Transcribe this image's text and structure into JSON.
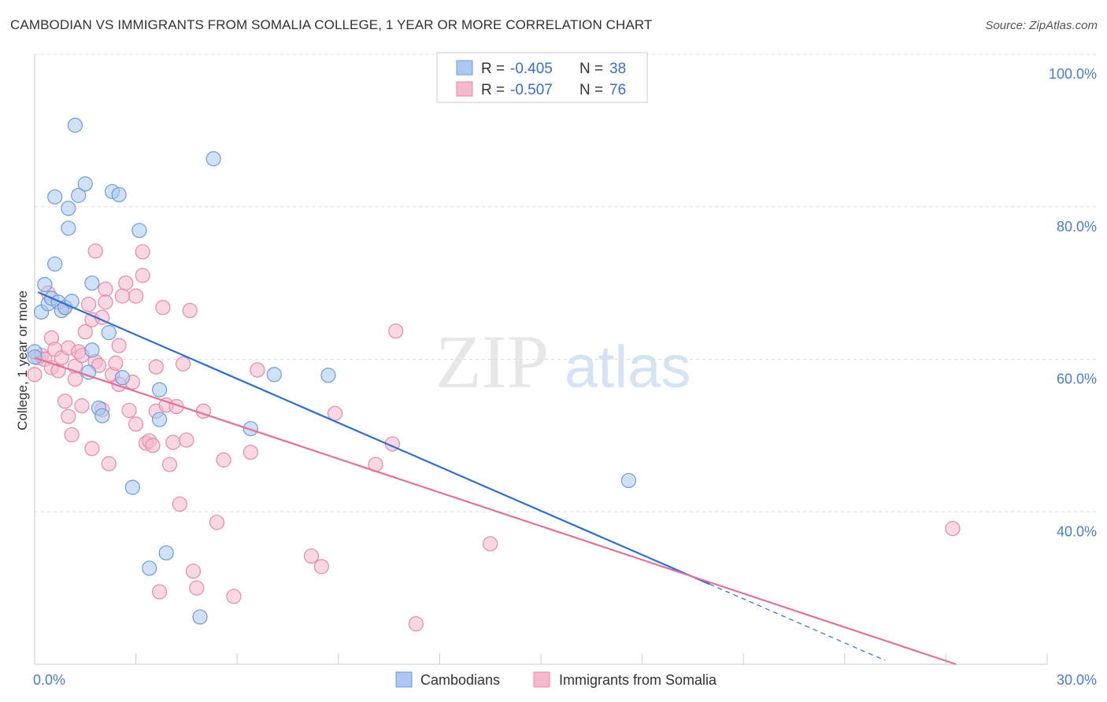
{
  "title": "CAMBODIAN VS IMMIGRANTS FROM SOMALIA COLLEGE, 1 YEAR OR MORE CORRELATION CHART",
  "source": "Source: ZipAtlas.com",
  "watermark": {
    "zip": "ZIP",
    "atlas": "atlas"
  },
  "colors": {
    "blue_fill": "#aac8f0",
    "blue_stroke": "#6f9bd6",
    "blue_line": "#2f6fcf",
    "pink_fill": "#f5b8cc",
    "pink_stroke": "#e58aa8",
    "pink_line": "#e0719b",
    "grid": "#dddddd",
    "tick_text": "#4a7cc9"
  },
  "legend": {
    "r_label": "R =",
    "n_label": "N =",
    "series": [
      {
        "name": "Cambodians",
        "r": "-0.405",
        "n": "38"
      },
      {
        "name": "Immigrants from Somalia",
        "r": "-0.507",
        "n": "76"
      }
    ]
  },
  "chart_data": {
    "type": "scatter",
    "title": "CAMBODIAN VS IMMIGRANTS FROM SOMALIA COLLEGE, 1 YEAR OR MORE CORRELATION CHART",
    "xlabel": "",
    "ylabel": "College, 1 year or more",
    "xlim": [
      0,
      30
    ],
    "ylim": [
      20,
      103
    ],
    "x_tick_labels": {
      "min": "0.0%",
      "max": "30.0%"
    },
    "y_ticks": [
      {
        "value": 100,
        "label": "100.0%"
      },
      {
        "value": 80,
        "label": "80.0%"
      },
      {
        "value": 60,
        "label": "60.0%"
      },
      {
        "value": 40,
        "label": "40.0%"
      }
    ],
    "series": [
      {
        "name": "Cambodians",
        "color": "blue",
        "trend": {
          "x0": 0.1,
          "y0": 68.8,
          "x1": 20.0,
          "y1": 30.5,
          "dash_to_x": 25.2
        },
        "points": [
          [
            0.0,
            61.0
          ],
          [
            0.0,
            60.3
          ],
          [
            0.2,
            66.2
          ],
          [
            0.3,
            69.8
          ],
          [
            0.4,
            67.3
          ],
          [
            0.5,
            68.0
          ],
          [
            0.6,
            72.5
          ],
          [
            0.6,
            81.3
          ],
          [
            0.7,
            67.5
          ],
          [
            0.8,
            66.4
          ],
          [
            0.9,
            66.8
          ],
          [
            1.0,
            77.2
          ],
          [
            1.0,
            79.8
          ],
          [
            1.1,
            67.6
          ],
          [
            1.2,
            90.7
          ],
          [
            1.3,
            81.5
          ],
          [
            1.5,
            83.0
          ],
          [
            1.6,
            58.3
          ],
          [
            1.7,
            70.0
          ],
          [
            1.7,
            61.2
          ],
          [
            1.9,
            53.6
          ],
          [
            2.0,
            52.6
          ],
          [
            2.2,
            63.5
          ],
          [
            2.3,
            82.0
          ],
          [
            2.5,
            81.6
          ],
          [
            2.6,
            57.6
          ],
          [
            2.9,
            43.2
          ],
          [
            3.1,
            76.9
          ],
          [
            3.4,
            32.6
          ],
          [
            3.7,
            56.0
          ],
          [
            3.7,
            52.1
          ],
          [
            3.9,
            34.6
          ],
          [
            4.9,
            26.2
          ],
          [
            5.3,
            86.3
          ],
          [
            6.4,
            50.9
          ],
          [
            7.1,
            58.0
          ],
          [
            8.7,
            57.9
          ],
          [
            17.6,
            44.1
          ]
        ]
      },
      {
        "name": "Immigrants from Somalia",
        "color": "pink",
        "trend": {
          "x0": 0.0,
          "y0": 60.2,
          "x1": 27.3,
          "y1": 20.0
        },
        "points": [
          [
            0.0,
            58.0
          ],
          [
            0.1,
            60.2
          ],
          [
            0.2,
            60.5
          ],
          [
            0.3,
            60.0
          ],
          [
            0.4,
            68.7
          ],
          [
            0.5,
            58.9
          ],
          [
            0.5,
            62.8
          ],
          [
            0.6,
            61.3
          ],
          [
            0.7,
            58.5
          ],
          [
            0.8,
            60.2
          ],
          [
            0.9,
            66.8
          ],
          [
            0.9,
            54.5
          ],
          [
            1.0,
            61.5
          ],
          [
            1.0,
            52.5
          ],
          [
            1.1,
            50.1
          ],
          [
            1.2,
            59.1
          ],
          [
            1.2,
            57.4
          ],
          [
            1.3,
            61.0
          ],
          [
            1.4,
            53.9
          ],
          [
            1.4,
            60.5
          ],
          [
            1.5,
            63.6
          ],
          [
            1.6,
            67.2
          ],
          [
            1.7,
            65.2
          ],
          [
            1.7,
            48.3
          ],
          [
            1.8,
            74.2
          ],
          [
            1.8,
            59.7
          ],
          [
            1.9,
            59.2
          ],
          [
            2.0,
            65.5
          ],
          [
            2.0,
            53.4
          ],
          [
            2.1,
            69.2
          ],
          [
            2.1,
            67.5
          ],
          [
            2.2,
            46.3
          ],
          [
            2.3,
            58.0
          ],
          [
            2.4,
            59.5
          ],
          [
            2.5,
            56.7
          ],
          [
            2.5,
            61.8
          ],
          [
            2.6,
            68.3
          ],
          [
            2.7,
            70.0
          ],
          [
            2.8,
            53.3
          ],
          [
            2.9,
            57.0
          ],
          [
            3.0,
            51.5
          ],
          [
            3.0,
            68.3
          ],
          [
            3.2,
            74.1
          ],
          [
            3.2,
            71.0
          ],
          [
            3.3,
            49.0
          ],
          [
            3.4,
            49.3
          ],
          [
            3.5,
            48.7
          ],
          [
            3.6,
            59.0
          ],
          [
            3.6,
            53.2
          ],
          [
            3.7,
            29.5
          ],
          [
            3.8,
            66.8
          ],
          [
            3.9,
            54.0
          ],
          [
            4.0,
            46.2
          ],
          [
            4.1,
            49.1
          ],
          [
            4.2,
            53.8
          ],
          [
            4.3,
            41.0
          ],
          [
            4.4,
            59.4
          ],
          [
            4.5,
            49.4
          ],
          [
            4.6,
            66.4
          ],
          [
            4.7,
            32.2
          ],
          [
            4.8,
            30.0
          ],
          [
            5.0,
            53.2
          ],
          [
            5.4,
            38.6
          ],
          [
            5.6,
            46.8
          ],
          [
            5.9,
            28.9
          ],
          [
            6.4,
            47.8
          ],
          [
            6.6,
            58.6
          ],
          [
            8.2,
            34.2
          ],
          [
            8.5,
            32.8
          ],
          [
            8.9,
            52.9
          ],
          [
            10.1,
            46.2
          ],
          [
            10.6,
            48.9
          ],
          [
            10.7,
            63.7
          ],
          [
            11.3,
            25.3
          ],
          [
            13.5,
            35.8
          ],
          [
            27.2,
            37.8
          ]
        ]
      }
    ]
  }
}
